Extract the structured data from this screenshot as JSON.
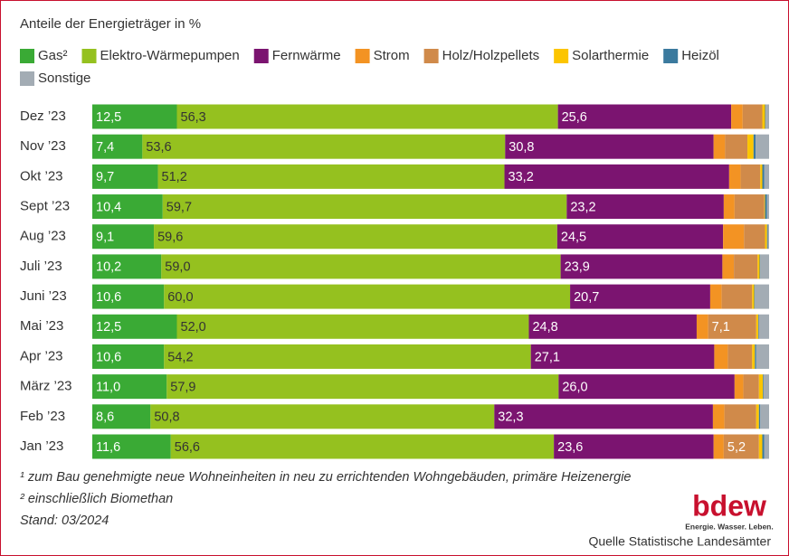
{
  "chart_data": {
    "type": "bar",
    "stacked": true,
    "horizontal": true,
    "title": "Anteile der Energieträger in %",
    "categories": [
      "Dez ’23",
      "Nov ’23",
      "Okt ’23",
      "Sept ’23",
      "Aug ’23",
      "Juli ’23",
      "Juni ’23",
      "Mai ’23",
      "Apr ’23",
      "März ’23",
      "Feb ’23",
      "Jan ’23"
    ],
    "xlim": [
      0,
      100
    ],
    "series": [
      {
        "name": "Gas²",
        "color": "#3aaa35",
        "label_color": "#ffffff",
        "values": [
          12.5,
          7.4,
          9.7,
          10.4,
          9.1,
          10.2,
          10.6,
          12.5,
          10.6,
          11.0,
          8.6,
          11.6
        ],
        "value_labels": [
          "12,5",
          "7,4",
          "9,7",
          "10,4",
          "9,1",
          "10,2",
          "10,6",
          "12,5",
          "10,6",
          "11,0",
          "8,6",
          "11,6"
        ]
      },
      {
        "name": "Elektro-Wärmepumpen",
        "color": "#95c11f",
        "label_color": "#333333",
        "values": [
          56.3,
          53.6,
          51.2,
          59.7,
          59.6,
          59.0,
          60.0,
          52.0,
          54.2,
          57.9,
          50.8,
          56.6
        ],
        "value_labels": [
          "56,3",
          "53,6",
          "51,2",
          "59,7",
          "59,6",
          "59,0",
          "60,0",
          "52,0",
          "54,2",
          "57,9",
          "50,8",
          "56,6"
        ]
      },
      {
        "name": "Fernwärme",
        "color": "#7b1470",
        "label_color": "#ffffff",
        "values": [
          25.6,
          30.8,
          33.2,
          23.2,
          24.5,
          23.9,
          20.7,
          24.8,
          27.1,
          26.0,
          32.3,
          23.6
        ],
        "value_labels": [
          "25,6",
          "30,8",
          "33,2",
          "23,2",
          "24,5",
          "23,9",
          "20,7",
          "24,8",
          "27,1",
          "26,0",
          "32,3",
          "23,6"
        ]
      },
      {
        "name": "Strom",
        "color": "#f39323",
        "values": [
          1.7,
          1.7,
          1.7,
          1.6,
          3.1,
          1.7,
          1.7,
          1.7,
          2.0,
          1.3,
          1.7,
          1.5
        ]
      },
      {
        "name": "Holz/Holzpellets",
        "color": "#d08a4a",
        "label_color": "#ffffff",
        "values": [
          2.9,
          3.3,
          2.9,
          4.4,
          3.1,
          3.5,
          4.5,
          7.1,
          3.6,
          2.3,
          4.7,
          5.2
        ],
        "value_labels": [
          null,
          null,
          null,
          null,
          null,
          null,
          null,
          "7,1",
          null,
          null,
          null,
          "5,2"
        ]
      },
      {
        "name": "Solarthermie",
        "color": "#fcc500",
        "values": [
          0.4,
          0.9,
          0.3,
          0.1,
          0.3,
          0.3,
          0.3,
          0.3,
          0.4,
          0.6,
          0.4,
          0.5
        ]
      },
      {
        "name": "Heizöl",
        "color": "#3b7a9e",
        "values": [
          0.1,
          0.3,
          0.3,
          0.3,
          0.1,
          0.1,
          0.1,
          0.1,
          0.2,
          0.1,
          0.2,
          0.3
        ]
      },
      {
        "name": "Sonstige",
        "color": "#a3acb4",
        "values": [
          0.5,
          2.0,
          0.7,
          0.3,
          0.2,
          1.3,
          2.1,
          1.5,
          1.9,
          0.8,
          1.3,
          0.7
        ]
      }
    ],
    "notes": [
      "¹ zum Bau genehmigte neue Wohneinheiten in neu zu errichtenden Wohngebäuden, primäre Heizenergie",
      "² einschließlich Biomethan",
      "Stand: 03/2024"
    ],
    "logo": {
      "name": "bdew",
      "slogan": "Energie. Wasser. Leben."
    },
    "source": "Quelle Statistische Landesämter"
  }
}
